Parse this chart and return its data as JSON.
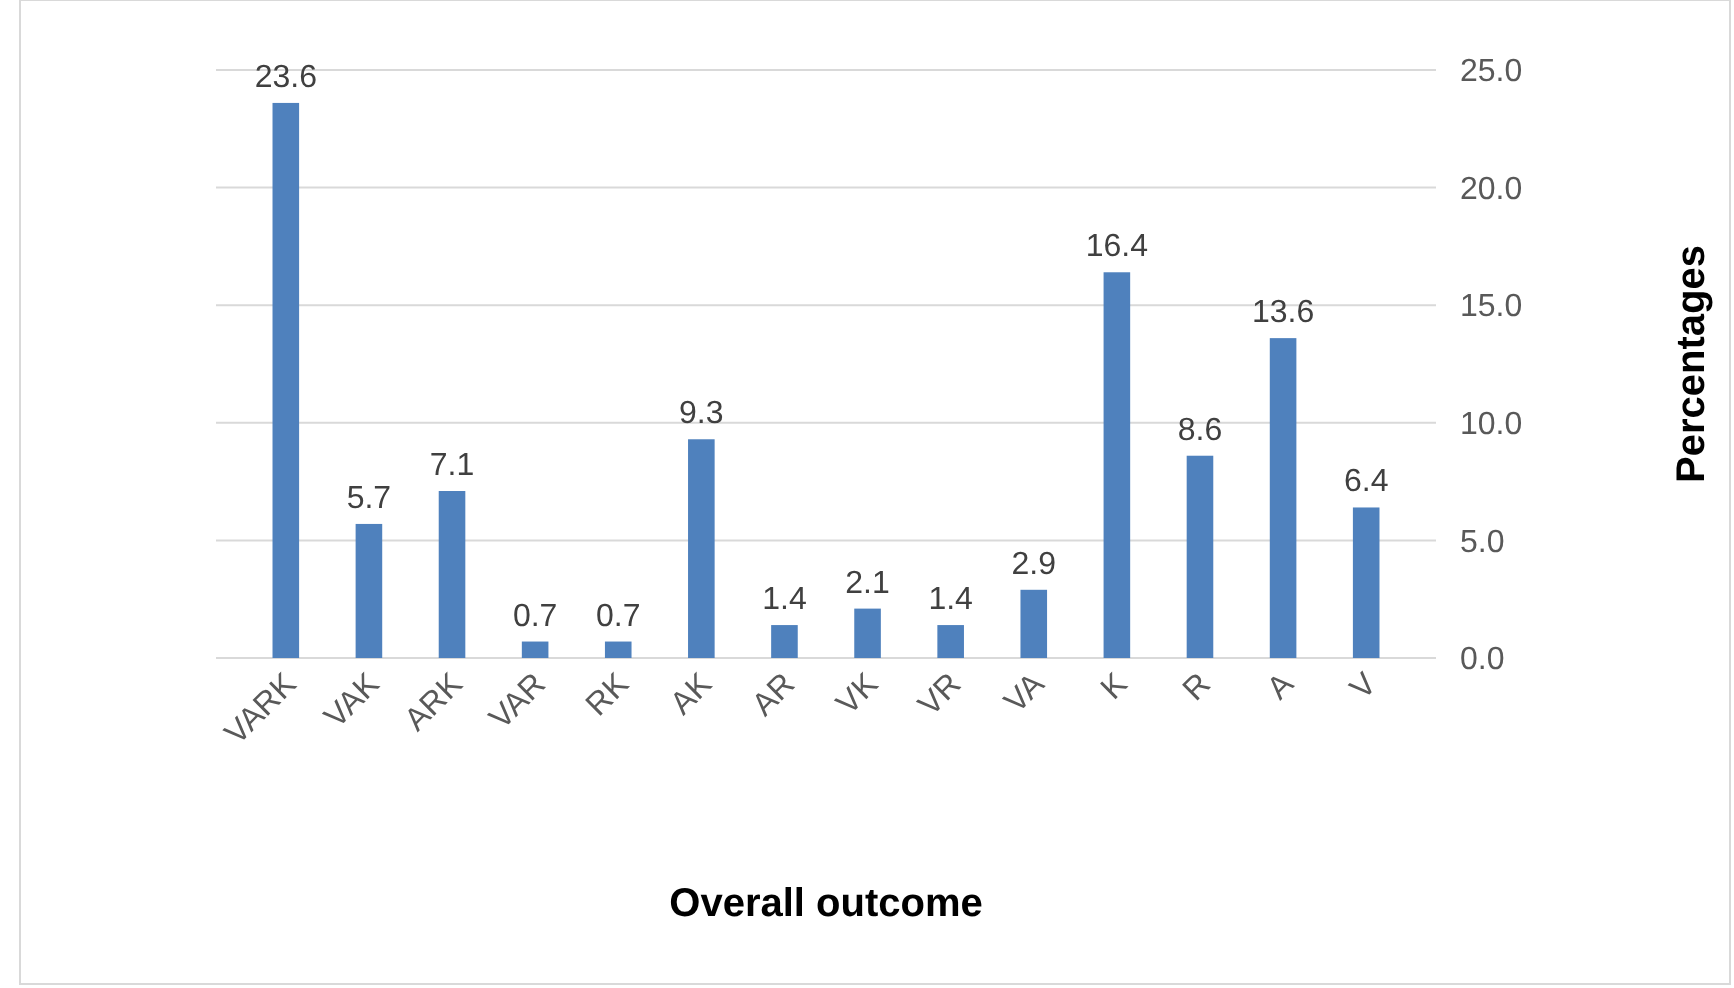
{
  "chart_data": {
    "type": "bar",
    "xlabel": "Overall outcome",
    "ylabel": "Percentages",
    "categories": [
      "VARK",
      "VAK",
      "ARK",
      "VAR",
      "RK",
      "AK",
      "AR",
      "VK",
      "VR",
      "VA",
      "K",
      "R",
      "A",
      "V"
    ],
    "values": [
      23.6,
      5.7,
      7.1,
      0.7,
      0.7,
      9.3,
      1.4,
      2.1,
      1.4,
      2.9,
      16.4,
      8.6,
      13.6,
      6.4
    ],
    "color": "#4f81bd",
    "ylim": [
      0,
      25
    ],
    "yticks": [
      {
        "value": 0,
        "label": "0.0"
      },
      {
        "value": 5,
        "label": "5.0"
      },
      {
        "value": 10,
        "label": "10.0"
      },
      {
        "value": 15,
        "label": "15.0"
      },
      {
        "value": 20,
        "label": "20.0"
      },
      {
        "value": 25,
        "label": "25.0"
      }
    ],
    "grid": true,
    "data_labels": true
  }
}
